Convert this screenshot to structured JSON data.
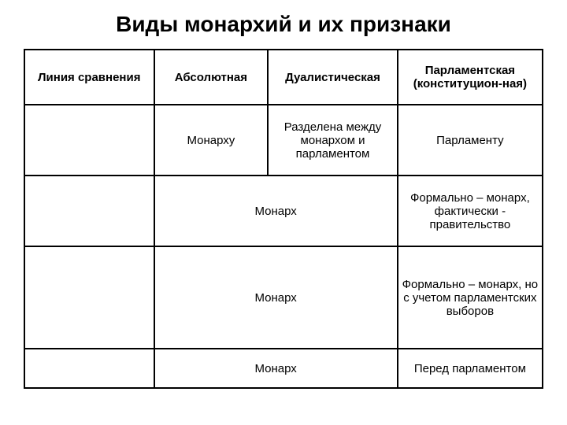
{
  "title": "Виды монархий и их признаки",
  "table": {
    "background_color": "#ffffff",
    "border_color": "#000000",
    "text_color": "#000000",
    "title_fontsize": 28,
    "cell_fontsize": 15,
    "columns": [
      {
        "label": "Линия сравнения",
        "width_pct": 25
      },
      {
        "label": "Абсолютная",
        "width_pct": 22
      },
      {
        "label": "Дуалистическая",
        "width_pct": 25
      },
      {
        "label": "Парламентская (конституцион-ная)",
        "width_pct": 28
      }
    ],
    "rows": [
      {
        "cells": [
          {
            "text": "",
            "colspan": 1
          },
          {
            "text": "Монарху",
            "colspan": 1
          },
          {
            "text": "Разделена между монархом и парламентом",
            "colspan": 1
          },
          {
            "text": "Парламенту",
            "colspan": 1
          }
        ]
      },
      {
        "cells": [
          {
            "text": "",
            "colspan": 1
          },
          {
            "text": "Монарх",
            "colspan": 2
          },
          {
            "text": "Формально – монарх, фактически - правительство",
            "colspan": 1
          }
        ]
      },
      {
        "cells": [
          {
            "text": "",
            "colspan": 1
          },
          {
            "text": "Монарх",
            "colspan": 2
          },
          {
            "text": "Формально – монарх, но с учетом парламентских выборов",
            "colspan": 1
          }
        ]
      },
      {
        "cells": [
          {
            "text": "",
            "colspan": 1
          },
          {
            "text": "Монарх",
            "colspan": 2
          },
          {
            "text": "Перед парламентом",
            "colspan": 1
          }
        ]
      }
    ]
  }
}
